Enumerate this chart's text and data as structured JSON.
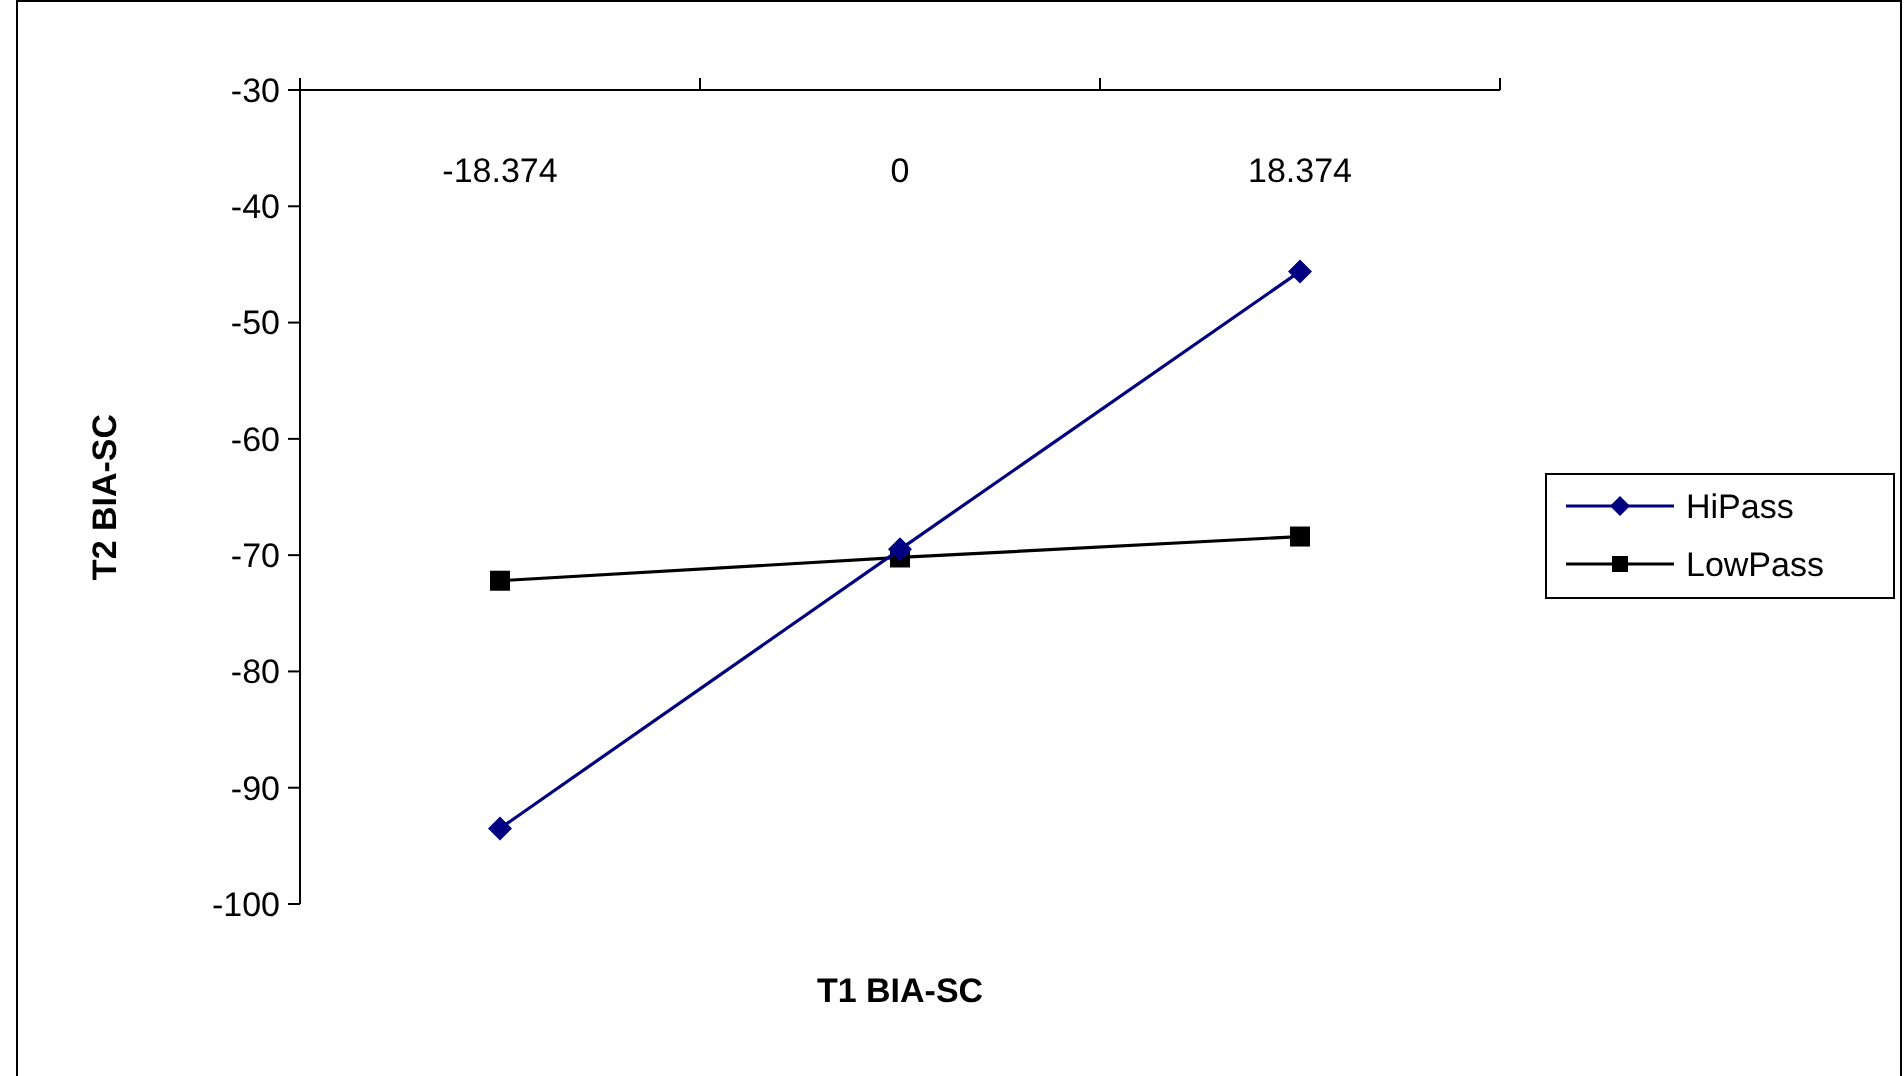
{
  "chart_data": {
    "type": "line",
    "xlabel": "T1 BIA-SC",
    "ylabel": "T2 BIA-SC",
    "categories": [
      "-18.374",
      "0",
      "18.374"
    ],
    "series": [
      {
        "name": "HiPass",
        "color": "#000080",
        "marker": "diamond",
        "values": [
          -93.5,
          -69.5,
          -45.6
        ]
      },
      {
        "name": "LowPass",
        "color": "#000000",
        "marker": "square",
        "values": [
          -72.2,
          -70.2,
          -68.4
        ]
      }
    ],
    "ylim": [
      -100,
      -30
    ],
    "yticks": [
      -100,
      -90,
      -80,
      -70,
      -60,
      -50,
      -40,
      -30
    ],
    "legend": "right",
    "grid": false
  }
}
